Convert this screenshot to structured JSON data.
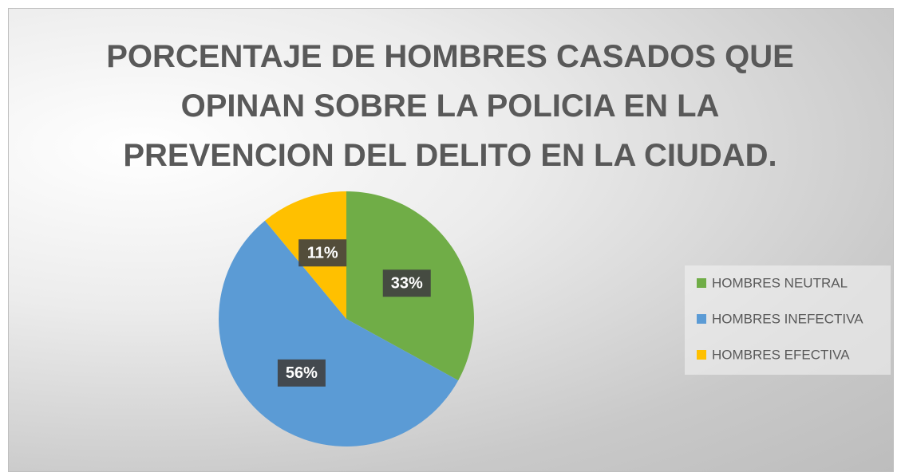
{
  "chart_data": {
    "type": "pie",
    "title": "PORCENTAJE DE HOMBRES CASADOS QUE OPINAN SOBRE LA POLICIA EN LA PREVENCION DEL DELITO EN LA CIUDAD.",
    "categories": [
      "HOMBRES NEUTRAL",
      "HOMBRES INEFECTIVA",
      "HOMBRES EFECTIVA"
    ],
    "values": [
      33,
      56,
      11
    ],
    "value_labels": [
      "33%",
      "56%",
      "11%"
    ],
    "colors": [
      "#70ad47",
      "#5b9bd5",
      "#ffc000"
    ],
    "legend": "right"
  }
}
